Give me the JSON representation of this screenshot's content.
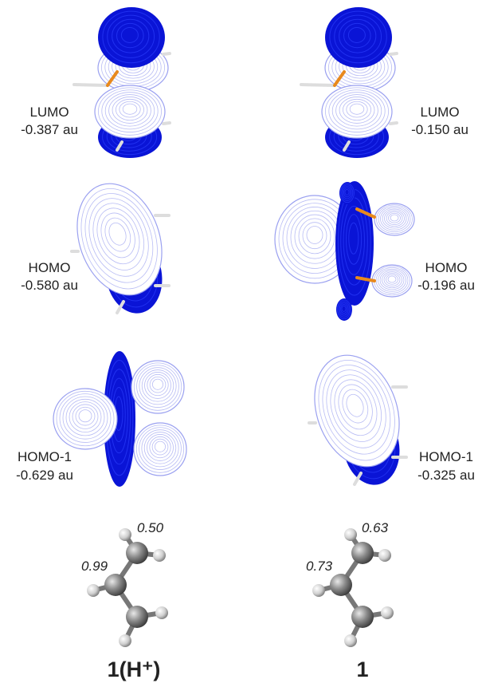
{
  "columns": [
    {
      "title": "1(H⁺)",
      "orbitals": [
        {
          "label": "LUMO",
          "energy": "-0.387 au"
        },
        {
          "label": "HOMO",
          "energy": "-0.580 au"
        },
        {
          "label": "HOMO-1",
          "energy": "-0.629 au"
        }
      ],
      "charges": [
        "0.50",
        "0.99"
      ]
    },
    {
      "title": "1",
      "orbitals": [
        {
          "label": "LUMO",
          "energy": "-0.150 au"
        },
        {
          "label": "HOMO",
          "energy": "-0.196 au"
        },
        {
          "label": "HOMO-1",
          "energy": "-0.325 au"
        }
      ],
      "charges": [
        "0.63",
        "0.73"
      ]
    }
  ]
}
